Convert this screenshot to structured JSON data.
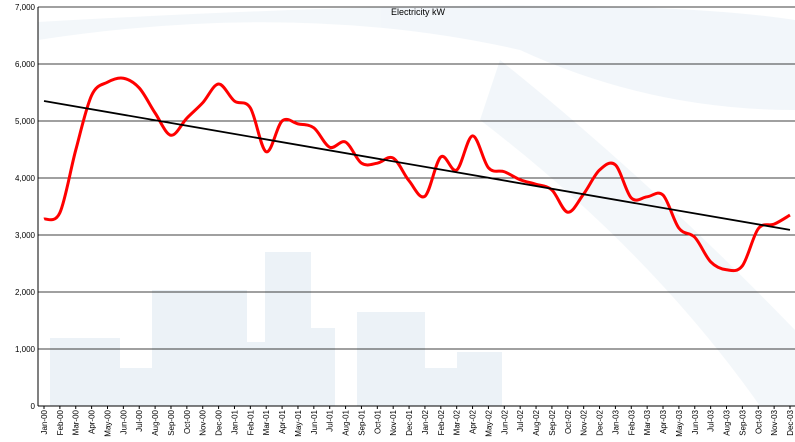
{
  "chart_data": {
    "type": "line",
    "title": "Electricity kW",
    "categories": [
      "Jan-00",
      "Feb-00",
      "Mar-00",
      "Apr-00",
      "May-00",
      "Jun-00",
      "Jul-00",
      "Aug-00",
      "Sep-00",
      "Oct-00",
      "Nov-00",
      "Dec-00",
      "Jan-01",
      "Feb-01",
      "Mar-01",
      "Apr-01",
      "May-01",
      "Jun-01",
      "Jul-01",
      "Aug-01",
      "Sep-01",
      "Oct-01",
      "Nov-01",
      "Dec-01",
      "Jan-02",
      "Feb-02",
      "Mar-02",
      "Apr-02",
      "May-02",
      "Jun-02",
      "Jul-02",
      "Aug-02",
      "Sep-02",
      "Oct-02",
      "Nov-02",
      "Dec-02",
      "Jan-03",
      "Feb-03",
      "Mar-03",
      "Apr-03",
      "May-03",
      "Jun-03",
      "Jul-03",
      "Aug-03",
      "Sep-03",
      "Oct-03",
      "Nov-03",
      "Dec-03"
    ],
    "values": [
      3280,
      3390,
      4490,
      5450,
      5680,
      5750,
      5580,
      5140,
      4750,
      5050,
      5320,
      5650,
      5350,
      5230,
      4460,
      5000,
      4950,
      4880,
      4540,
      4630,
      4260,
      4260,
      4350,
      3950,
      3680,
      4370,
      4140,
      4740,
      4180,
      4110,
      3970,
      3890,
      3790,
      3400,
      3720,
      4140,
      4230,
      3650,
      3670,
      3700,
      3120,
      2960,
      2530,
      2390,
      2460,
      3110,
      3190,
      3350
    ],
    "color": "#ff0000",
    "trendline": {
      "values": [
        5350,
        3090
      ],
      "color": "#000000"
    },
    "ylim": [
      0,
      7000
    ],
    "yticks": [
      0,
      {
        "value": 1000,
        "label": "1,000"
      },
      {
        "value": 2000,
        "label": "2,000"
      },
      {
        "value": 3000,
        "label": "3,000"
      },
      {
        "value": 4000,
        "label": "4,000"
      },
      {
        "value": 5000,
        "label": "5,000"
      },
      {
        "value": 6000,
        "label": "6,000"
      },
      {
        "value": 7000,
        "label": "7,000"
      }
    ],
    "grid": true
  }
}
